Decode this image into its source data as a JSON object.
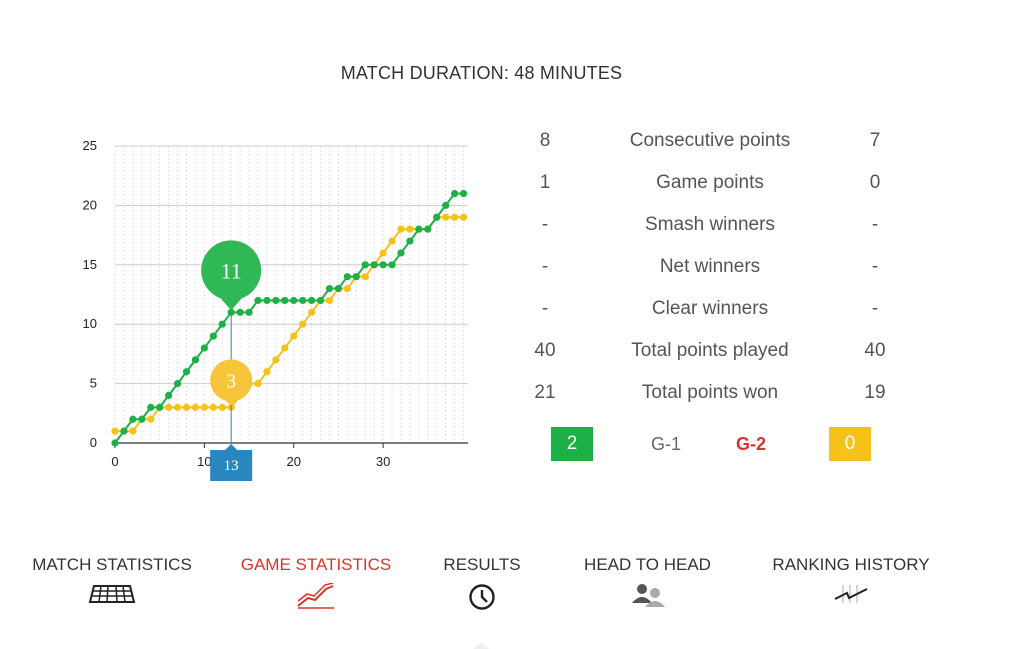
{
  "header": {
    "title": "MATCH DURATION: 48 MINUTES"
  },
  "chart_data": {
    "type": "line",
    "x": [
      0,
      1,
      2,
      3,
      4,
      5,
      6,
      7,
      8,
      9,
      10,
      11,
      12,
      13,
      14,
      15,
      16,
      17,
      18,
      19,
      20,
      21,
      22,
      23,
      24,
      25,
      26,
      27,
      28,
      29,
      30,
      31,
      32,
      33,
      34,
      35,
      36,
      37,
      38,
      39
    ],
    "series": [
      {
        "color": "#1db046",
        "values": [
          0,
          1,
          2,
          2,
          3,
          3,
          4,
          5,
          6,
          7,
          8,
          9,
          10,
          11,
          11,
          11,
          12,
          12,
          12,
          12,
          12,
          12,
          12,
          12,
          13,
          13,
          14,
          14,
          15,
          15,
          15,
          15,
          16,
          17,
          18,
          18,
          19,
          20,
          21,
          21
        ]
      },
      {
        "color": "#f6c119",
        "values": [
          1,
          1,
          1,
          2,
          2,
          3,
          3,
          3,
          3,
          3,
          3,
          3,
          3,
          3,
          4,
          5,
          5,
          6,
          7,
          8,
          9,
          10,
          11,
          12,
          12,
          13,
          13,
          14,
          14,
          15,
          16,
          17,
          18,
          18,
          18,
          18,
          19,
          19,
          19,
          19
        ]
      }
    ],
    "xticks": [
      0,
      10,
      20,
      30
    ],
    "yticks": [
      0,
      5,
      10,
      15,
      20,
      25
    ],
    "xlim": [
      0,
      39
    ],
    "ylim": [
      0,
      25
    ],
    "grid": true,
    "tooltip": {
      "x_label": "13",
      "green_value": "11",
      "yellow_value": "3",
      "x": 13
    }
  },
  "stats": {
    "rows": [
      {
        "left": "8",
        "label": "Consecutive points",
        "right": "7"
      },
      {
        "left": "1",
        "label": "Game points",
        "right": "0"
      },
      {
        "left": "-",
        "label": "Smash winners",
        "right": "-"
      },
      {
        "left": "-",
        "label": "Net winners",
        "right": "-"
      },
      {
        "left": "-",
        "label": "Clear winners",
        "right": "-"
      },
      {
        "left": "40",
        "label": "Total points played",
        "right": "40"
      },
      {
        "left": "21",
        "label": "Total points won",
        "right": "19"
      }
    ]
  },
  "games": {
    "left_score": "2",
    "right_score": "0",
    "g1": "G-1",
    "g2": "G-2",
    "green": "#1db046",
    "yellow": "#f6c119",
    "active_red": "#d9342b"
  },
  "nav": {
    "items": [
      {
        "label": "MATCH STATISTICS",
        "icon": "grid-icon"
      },
      {
        "label": "GAME STATISTICS",
        "icon": "chart-lines-icon"
      },
      {
        "label": "RESULTS",
        "icon": "clock-icon"
      },
      {
        "label": "HEAD TO HEAD",
        "icon": "users-icon"
      },
      {
        "label": "RANKING HISTORY",
        "icon": "ranking-icon"
      }
    ]
  }
}
